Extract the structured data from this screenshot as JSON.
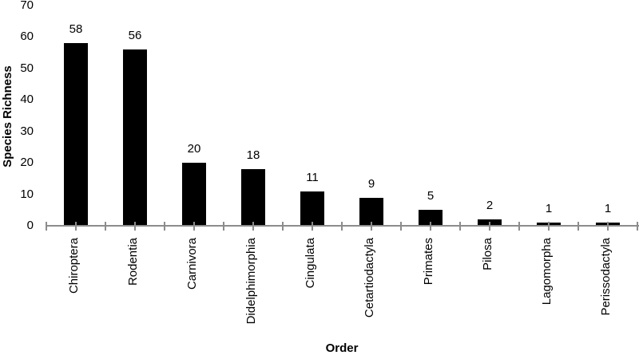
{
  "chart_data": {
    "type": "bar",
    "categories": [
      "Chiroptera",
      "Rodentia",
      "Carnivora",
      "Didelphimorphia",
      "Cingulata",
      "Cetartiodactyla",
      "Primates",
      "Pilosa",
      "Lagomorpha",
      "Perissodactyla"
    ],
    "values": [
      58,
      56,
      20,
      18,
      11,
      9,
      5,
      2,
      1,
      1
    ],
    "xlabel": "Order",
    "ylabel": "Species Richness",
    "ylim": [
      0,
      70
    ],
    "yticks": [
      0,
      10,
      20,
      30,
      40,
      50,
      60,
      70
    ],
    "data_labels_shown": true,
    "grid": false,
    "legend": "none",
    "bar_color": "#000000",
    "axis_color": "#8c8c8c",
    "text_color": "#000000",
    "background_color": "#ffffff"
  }
}
